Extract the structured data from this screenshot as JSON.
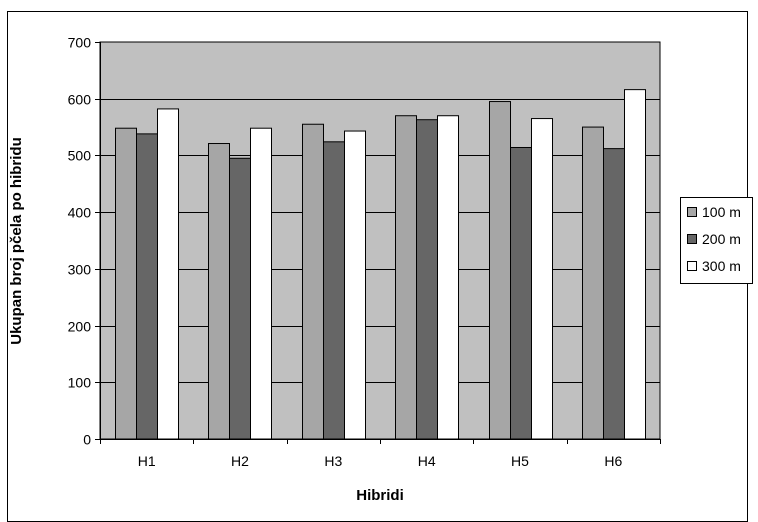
{
  "chart_data": {
    "type": "bar",
    "title": "",
    "xlabel": "Hibridi",
    "ylabel": "Ukupan broj pčela po hibridu",
    "categories": [
      "H1",
      "H2",
      "H3",
      "H4",
      "H5",
      "H6"
    ],
    "series": [
      {
        "name": "100 m",
        "values": [
          548,
          521,
          555,
          570,
          595,
          550
        ],
        "color": "#a6a6a6"
      },
      {
        "name": "200 m",
        "values": [
          538,
          495,
          524,
          563,
          514,
          512
        ],
        "color": "#666666"
      },
      {
        "name": "300 m",
        "values": [
          582,
          548,
          543,
          570,
          565,
          616
        ],
        "color": "#ffffff"
      }
    ],
    "ylim": [
      0,
      700
    ],
    "yticks": [
      0,
      100,
      200,
      300,
      400,
      500,
      600,
      700
    ],
    "grid": true,
    "plot_background": "#c0c0c0",
    "legend_position": "right"
  }
}
